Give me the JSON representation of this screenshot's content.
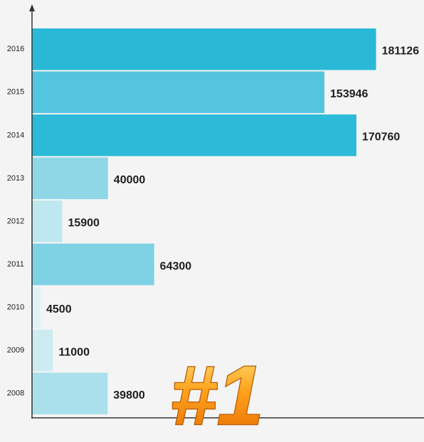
{
  "chart_data": {
    "type": "bar",
    "orientation": "horizontal",
    "annotation": "#1",
    "categories": [
      "2016",
      "2015",
      "2014",
      "2013",
      "2012",
      "2011",
      "2010",
      "2009",
      "2008"
    ],
    "values": [
      181126,
      153946,
      170760,
      40000,
      15900,
      64300,
      4500,
      11000,
      39800
    ],
    "colors": [
      "#29b9d7",
      "#53c5de",
      "#2bbad8",
      "#8fd7e7",
      "#bfe7ef",
      "#7fd1e4",
      "#e2f2f6",
      "#cdecf2",
      "#a9e0eb"
    ],
    "xlim": [
      0,
      200000
    ]
  }
}
